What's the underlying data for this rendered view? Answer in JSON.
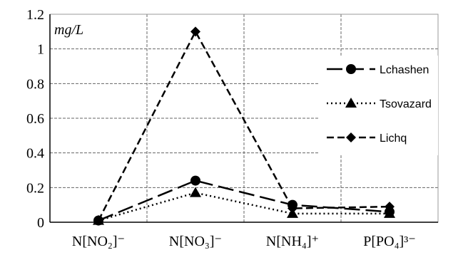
{
  "chart_data": {
    "type": "line",
    "unit_label": "mg/L",
    "categories": [
      "N[NO₂]⁻",
      "N[NO₃]⁻",
      "N[NH₄]⁺",
      "P[PO₄]³⁻"
    ],
    "ylim": [
      0,
      1.2
    ],
    "yticks": [
      "0",
      "0.2",
      "0.4",
      "0.6",
      "0.8",
      "1",
      "1.2"
    ],
    "grid": {
      "horizontal": true,
      "vertical": true,
      "vertical_style": "dashed"
    },
    "legend_position": "right",
    "series": [
      {
        "name": "Lchashen",
        "values": [
          0.01,
          0.24,
          0.1,
          0.06
        ],
        "marker": "circle",
        "line_style": "long-dash",
        "color": "#000000"
      },
      {
        "name": "Tsovazard",
        "values": [
          0.01,
          0.17,
          0.05,
          0.05
        ],
        "marker": "triangle",
        "line_style": "dotted",
        "color": "#000000"
      },
      {
        "name": "Lichq",
        "values": [
          0.01,
          1.1,
          0.08,
          0.09
        ],
        "marker": "diamond",
        "line_style": "dashed",
        "color": "#000000"
      }
    ]
  }
}
